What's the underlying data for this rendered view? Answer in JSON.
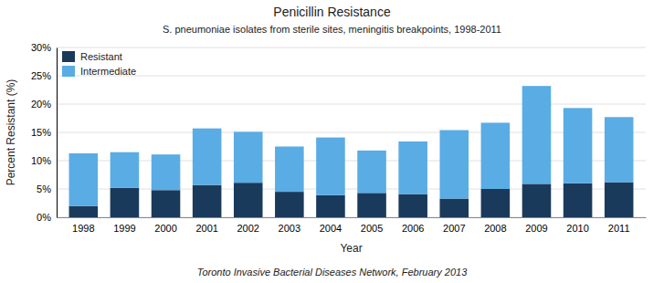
{
  "chart_data": {
    "type": "bar",
    "stacked": true,
    "title": "Penicillin Resistance",
    "subtitle": "S. pneumoniae isolates from sterile sites, meningitis breakpoints, 1998-2011",
    "footer": "Toronto Invasive Bacterial Diseases Network, February 2013",
    "xlabel": "Year",
    "ylabel": "Percent Resistant (%)",
    "categories": [
      "1998",
      "1999",
      "2000",
      "2001",
      "2002",
      "2003",
      "2004",
      "2005",
      "2006",
      "2007",
      "2008",
      "2009",
      "2010",
      "2011"
    ],
    "series": [
      {
        "name": "Resistant",
        "color": "#1a3a5c",
        "values": [
          2.0,
          5.2,
          4.8,
          5.7,
          6.1,
          4.5,
          3.9,
          4.3,
          4.1,
          3.3,
          5.0,
          5.9,
          6.0,
          6.2
        ]
      },
      {
        "name": "Intermediate",
        "color": "#5aace4",
        "values": [
          9.3,
          6.3,
          6.3,
          10.0,
          9.0,
          8.0,
          10.2,
          7.5,
          9.3,
          12.1,
          11.7,
          17.3,
          13.3,
          11.5
        ]
      }
    ],
    "ylim": [
      0,
      30
    ],
    "yticks": [
      {
        "value": 0,
        "label": "0%"
      },
      {
        "value": 5,
        "label": "5%"
      },
      {
        "value": 10,
        "label": "10%"
      },
      {
        "value": 15,
        "label": "15%"
      },
      {
        "value": 20,
        "label": "20%"
      },
      {
        "value": 25,
        "label": "25%"
      },
      {
        "value": 30,
        "label": "30%"
      }
    ],
    "grid": true,
    "legend": "upper-left"
  }
}
